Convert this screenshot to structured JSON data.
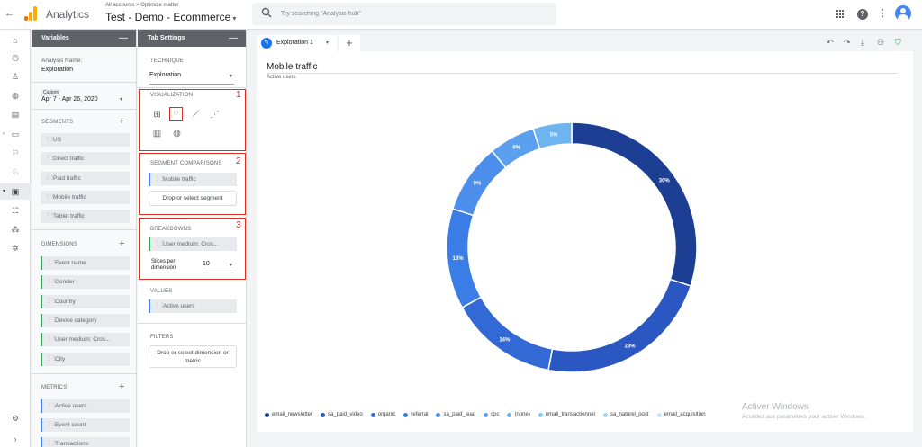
{
  "header": {
    "app_name": "Analytics",
    "breadcrumb": "All accounts > Optimize matter",
    "account": "Test - Demo - Ecommerce",
    "search_placeholder": "Try searching \"Analysis hub\""
  },
  "leftnav": {
    "icons": [
      "home-icon",
      "clock-icon",
      "person-icon",
      "globe-icon",
      "dashboard-icon",
      "devices-icon",
      "flag-icon",
      "realtime-icon",
      "explore-icon",
      "audience-icon",
      "attribution-icon",
      "settings-icon",
      "gear-icon",
      "expand-icon"
    ]
  },
  "variables": {
    "title": "Variables",
    "analysis_name_label": "Analysis Name:",
    "analysis_name": "Exploration",
    "date_badge": "Custom",
    "date_range": "Apr 7 - Apr 26, 2020",
    "segments_label": "SEGMENTS",
    "segments": [
      "US",
      "Direct traffic",
      "Paid traffic",
      "Mobile traffic",
      "Tablet traffic"
    ],
    "dimensions_label": "DIMENSIONS",
    "dimensions": [
      "Event name",
      "Gender",
      "Country",
      "Device category",
      "User medium: Cros...",
      "City"
    ],
    "metrics_label": "METRICS",
    "metrics": [
      "Active users",
      "Event count",
      "Transactions"
    ]
  },
  "tab_settings": {
    "title": "Tab Settings",
    "technique_label": "TECHNIQUE",
    "technique": "Exploration",
    "visualization_label": "VISUALIZATION",
    "segment_comparisons_label": "SEGMENT COMPARISONS",
    "segment_comparison_chip": "Mobile traffic",
    "drop_segment": "Drop or select segment",
    "breakdowns_label": "BREAKDOWNS",
    "breakdown_chip": "User medium: Cros...",
    "slices_label_1": "Slices per",
    "slices_label_2": "dimension",
    "slices_value": "10",
    "values_label": "VALUES",
    "values_chip": "Active users",
    "filters_label": "FILTERS",
    "drop_filter_1": "Drop or select dimension or",
    "drop_filter_2": "metric",
    "annotations": [
      "1",
      "2",
      "3"
    ]
  },
  "canvas": {
    "tab_name": "Exploration 1",
    "add_tab": "+",
    "toolbar": [
      "undo-icon",
      "redo-icon",
      "download-icon",
      "share-icon",
      "verified-icon"
    ]
  },
  "watermark": {
    "line1": "Activer Windows",
    "line2": "Accédez aux paramètres pour activer Windows."
  },
  "chart_data": {
    "type": "pie",
    "title": "Mobile traffic",
    "subtitle": "Active users",
    "donut": true,
    "legend_position": "bottom",
    "slices": [
      {
        "name": "email_newsletter",
        "value": 30,
        "label": "30%",
        "color": "#1c3f94"
      },
      {
        "name": "sa_paid_video",
        "value": 23,
        "label": "23%",
        "color": "#2b57c2"
      },
      {
        "name": "organic",
        "value": 14,
        "label": "14%",
        "color": "#3269d4"
      },
      {
        "name": "referral",
        "value": 13,
        "label": "13%",
        "color": "#3b7de6"
      },
      {
        "name": "sa_paid_lead",
        "value": 9,
        "label": "9%",
        "color": "#4b8eeb"
      },
      {
        "name": "cpc",
        "value": 6,
        "label": "6%",
        "color": "#5aa0ee"
      },
      {
        "name": "(none)",
        "value": 5,
        "label": "5%",
        "color": "#6db4f0"
      }
    ],
    "legend": [
      {
        "name": "email_newsletter",
        "color": "#1c3f94"
      },
      {
        "name": "sa_paid_video",
        "color": "#2b57c2"
      },
      {
        "name": "organic",
        "color": "#3269d4"
      },
      {
        "name": "referral",
        "color": "#3b7de6"
      },
      {
        "name": "sa_paid_lead",
        "color": "#4b8eeb"
      },
      {
        "name": "cpc",
        "color": "#5aa0ee"
      },
      {
        "name": "(none)",
        "color": "#6db4f0"
      },
      {
        "name": "email_transactionnel",
        "color": "#8ac6f2"
      },
      {
        "name": "sa_naturel_post",
        "color": "#a9d6f5"
      },
      {
        "name": "email_acquisition",
        "color": "#c6e4f8"
      }
    ]
  }
}
